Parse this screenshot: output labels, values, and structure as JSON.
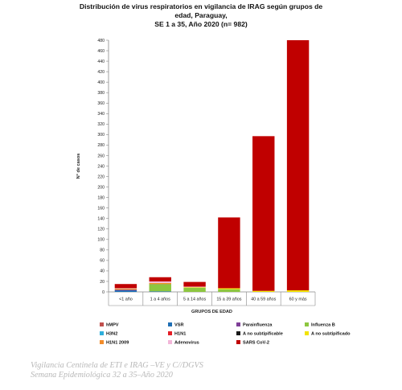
{
  "chart_data": {
    "type": "bar",
    "stacked": true,
    "title_lines": [
      "Distribución de virus respiratorios en vigilancia de IRAG según grupos de",
      "edad, Paraguay,",
      "SE 1 a 35, Año 2020  (n= 982)"
    ],
    "xlabel": "GRUPOS DE EDAD",
    "ylabel": "N° de casos",
    "ylim": [
      0,
      480
    ],
    "ytick_step": 20,
    "grid": false,
    "legend_position": "bottom",
    "categories": [
      "<1 año",
      "1 a 4 años",
      "5 a 14 años",
      "15 a 39 años",
      "40 a 59 años",
      "60 y más"
    ],
    "series": [
      {
        "name": "hMPV",
        "color": "#c0504d",
        "values": [
          0,
          0,
          0,
          0,
          0,
          0
        ]
      },
      {
        "name": "VSR",
        "color": "#1f6fb4",
        "values": [
          3,
          1,
          0,
          0,
          0,
          0
        ]
      },
      {
        "name": "Parainfluenza",
        "color": "#7f3f98",
        "values": [
          1,
          0,
          0,
          0,
          0,
          0
        ]
      },
      {
        "name": "Influenza  B",
        "color": "#8dc63f",
        "values": [
          0,
          14,
          8,
          5,
          0,
          0
        ]
      },
      {
        "name": "H3N2",
        "color": "#2eaedb",
        "values": [
          0,
          0,
          0,
          0,
          0,
          0
        ]
      },
      {
        "name": "H1N1",
        "color": "#e41e26",
        "values": [
          1,
          1,
          0,
          0,
          0,
          0
        ]
      },
      {
        "name": "A no subtipificable",
        "color": "#1a1a1a",
        "values": [
          0,
          0,
          0,
          0,
          0,
          0
        ]
      },
      {
        "name": "A no subtipificado",
        "color": "#f2e300",
        "values": [
          1,
          1,
          1,
          2,
          2,
          3
        ]
      },
      {
        "name": "H1N1 2009",
        "color": "#f28c2a",
        "values": [
          0,
          0,
          0,
          0,
          0,
          0
        ]
      },
      {
        "name": "Adenovirus",
        "color": "#f2b6d9",
        "values": [
          1,
          3,
          1,
          0,
          0,
          0
        ]
      },
      {
        "name": "SARS CoV-2",
        "color": "#c00000",
        "values": [
          8,
          8,
          9,
          135,
          295,
          477
        ]
      }
    ]
  },
  "footer": {
    "line1": "Vigilancia Centinela de ETI e IRAG –VE y C//DGVS",
    "line2": "Semana Epidemiológica 32 a 35–Año 2020"
  }
}
